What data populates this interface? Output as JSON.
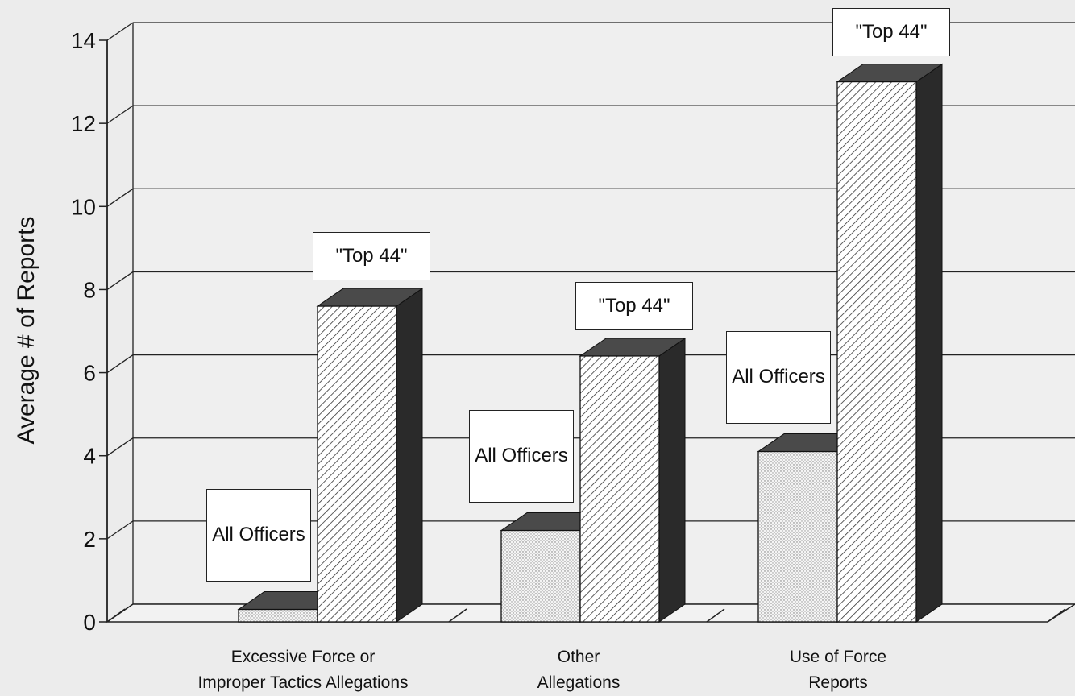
{
  "chart_data": {
    "type": "bar3d",
    "y_label": "Average # of Reports",
    "categories": [
      [
        "Excessive Force or",
        "Improper Tactics Allegations"
      ],
      [
        "Other",
        "Allegations"
      ],
      [
        "Use of Force",
        "Reports"
      ]
    ],
    "series": [
      {
        "name": "All Officers",
        "color": "#f4f4f4",
        "values": [
          0.3,
          2.2,
          4.1
        ]
      },
      {
        "name": "\"Top 44\"",
        "color": "#ffffff",
        "values": [
          7.6,
          6.4,
          13.0
        ]
      }
    ],
    "ylim": [
      0,
      14
    ],
    "yticks": [
      0,
      2,
      4,
      6,
      8,
      10,
      12,
      14
    ],
    "grid": true
  }
}
